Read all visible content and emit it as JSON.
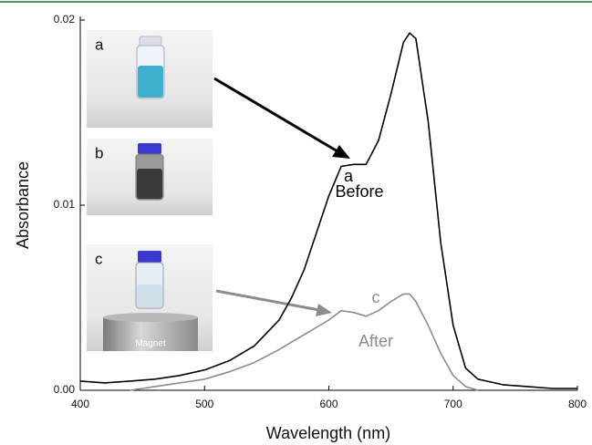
{
  "chart_data": {
    "type": "line",
    "x_label": "Wavelength (nm)",
    "y_label": "Absorbance",
    "x": [
      400,
      420,
      440,
      460,
      480,
      500,
      520,
      540,
      560,
      570,
      580,
      590,
      600,
      610,
      620,
      630,
      640,
      650,
      660,
      665,
      670,
      680,
      690,
      700,
      710,
      720,
      740,
      760,
      780,
      800
    ],
    "series": [
      {
        "name": "Before",
        "color": "#000000",
        "values": [
          0.0005,
          0.0004,
          0.0005,
          0.0006,
          0.0008,
          0.0011,
          0.0016,
          0.0024,
          0.0038,
          0.005,
          0.0065,
          0.0085,
          0.0105,
          0.0121,
          0.0122,
          0.0122,
          0.0135,
          0.016,
          0.0188,
          0.0193,
          0.019,
          0.0145,
          0.008,
          0.0035,
          0.0012,
          0.0006,
          0.0003,
          0.0002,
          0.0001,
          0.0001
        ]
      },
      {
        "name": "After",
        "color": "#8c8c8c",
        "values": [
          null,
          null,
          0.0,
          0.0002,
          0.0004,
          0.0006,
          0.001,
          0.0015,
          0.0022,
          0.0026,
          0.003,
          0.0034,
          0.0038,
          0.0043,
          0.0042,
          0.004,
          0.0043,
          0.0048,
          0.0052,
          0.0052,
          0.0048,
          0.0035,
          0.002,
          0.0008,
          0.0002,
          0.0,
          null,
          null,
          null,
          null
        ]
      }
    ],
    "curve_labels": [
      "a",
      "c"
    ],
    "inset_labels": [
      "a",
      "b",
      "c"
    ],
    "inset_note": "Magnet",
    "xlim": [
      400,
      800
    ],
    "xticks": [
      400,
      500,
      600,
      700,
      800
    ],
    "ylim": [
      0,
      0.02
    ],
    "yticks": [
      {
        "value": 0,
        "label": "0.00"
      },
      {
        "value": 0.01,
        "label": "0.01"
      },
      {
        "value": 0.02,
        "label": "0.02"
      }
    ]
  }
}
